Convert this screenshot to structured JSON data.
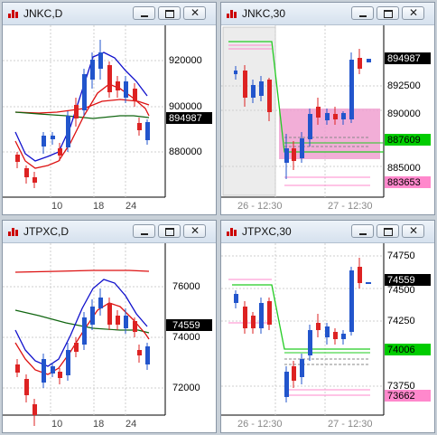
{
  "windows": [
    {
      "id": "jnkc-d",
      "title": "JNKC,D",
      "y_labels": [
        "920000",
        "900000",
        "880000"
      ],
      "x_labels": [
        "10",
        "18",
        "24"
      ],
      "price_tag": {
        "label": "894987",
        "color": "#000000"
      }
    },
    {
      "id": "jnkc-30",
      "title": "JNKC,30",
      "y_labels": [
        "892500",
        "890000",
        "885000"
      ],
      "x_labels": [
        "26 - 12:30",
        "27 - 12:30"
      ],
      "price_tags": [
        {
          "label": "894987",
          "color": "#000000"
        },
        {
          "label": "887609",
          "color": "#00cc00"
        },
        {
          "label": "883653",
          "color": "#ff88cc"
        }
      ]
    },
    {
      "id": "jtpxc-d",
      "title": "JTPXC,D",
      "y_labels": [
        "76000",
        "74000",
        "72000"
      ],
      "x_labels": [
        "10",
        "18",
        "24"
      ],
      "price_tag": {
        "label": "74559",
        "color": "#000000"
      }
    },
    {
      "id": "jtpxc-30",
      "title": "JTPXC,30",
      "y_labels": [
        "74750",
        "74500",
        "74250",
        "73750"
      ],
      "x_labels": [
        "26 - 12:30",
        "27 - 12:30"
      ],
      "price_tags": [
        {
          "label": "74559",
          "color": "#000000"
        },
        {
          "label": "74006",
          "color": "#00cc00"
        },
        {
          "label": "73662",
          "color": "#ff88cc"
        }
      ]
    }
  ],
  "colors": {
    "up_candle": "#2255cc",
    "down_candle": "#dd2222",
    "band_blue": "#1010cc",
    "band_red": "#dd1111",
    "avg_green": "#116611",
    "zone_pink": "#f0a0d0"
  }
}
